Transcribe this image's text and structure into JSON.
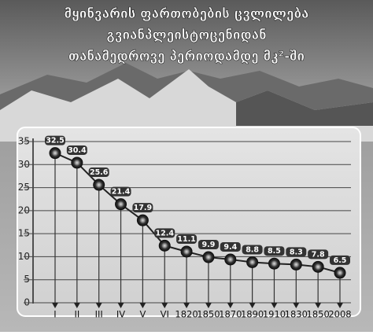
{
  "chart_data": {
    "type": "line",
    "title": [
      "მყინვარის ფართობების ცვლილება",
      "გვიანპლეისტოცენიდან",
      "თანამედროვე პერიოდამდე მკ²-ში"
    ],
    "categories": [
      "I",
      "II",
      "III",
      "IV",
      "V",
      "VI",
      "1820",
      "1850",
      "1870",
      "1890",
      "1910",
      "1830",
      "1850",
      "2008"
    ],
    "values": [
      32.5,
      30.4,
      25.6,
      21.4,
      17.9,
      12.4,
      11.1,
      9.9,
      9.4,
      8.8,
      8.5,
      8.3,
      7.8,
      6.5
    ],
    "color": "#222222",
    "ylim": [
      0,
      35
    ],
    "yticks": [
      0,
      5,
      10,
      15,
      20,
      25,
      30,
      35
    ],
    "grid": true
  }
}
